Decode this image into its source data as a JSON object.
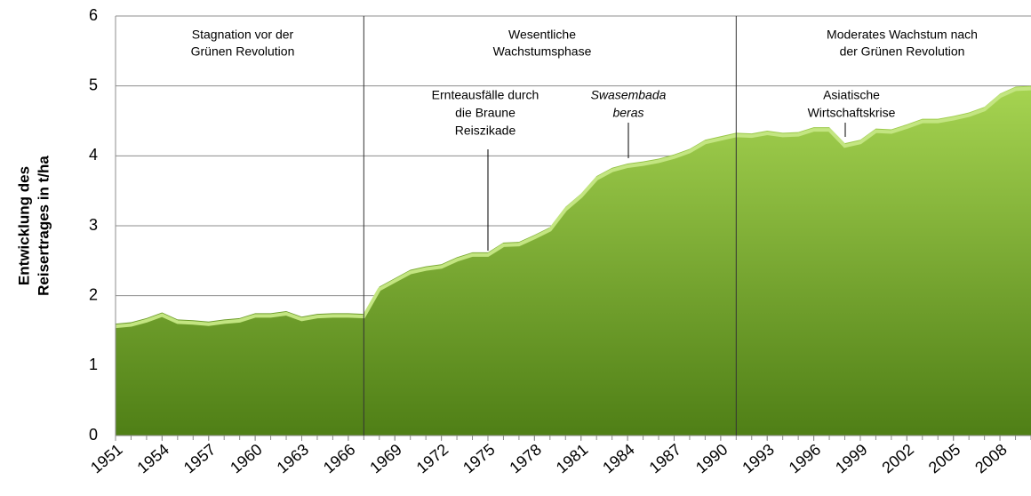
{
  "chart_data": {
    "type": "area",
    "y_label": [
      "Entwicklung des",
      "Reisertrages in t/ha"
    ],
    "x": [
      1951,
      1952,
      1953,
      1954,
      1955,
      1956,
      1957,
      1958,
      1959,
      1960,
      1961,
      1962,
      1963,
      1964,
      1965,
      1966,
      1967,
      1968,
      1969,
      1970,
      1971,
      1972,
      1973,
      1974,
      1975,
      1976,
      1977,
      1978,
      1979,
      1980,
      1981,
      1982,
      1983,
      1984,
      1985,
      1986,
      1987,
      1988,
      1989,
      1990,
      1991,
      1992,
      1993,
      1994,
      1995,
      1996,
      1997,
      1998,
      1999,
      2000,
      2001,
      2002,
      2003,
      2004,
      2005,
      2006,
      2007,
      2008,
      2009,
      2010
    ],
    "values": [
      1.6,
      1.62,
      1.68,
      1.76,
      1.66,
      1.65,
      1.63,
      1.66,
      1.68,
      1.75,
      1.75,
      1.78,
      1.7,
      1.74,
      1.75,
      1.75,
      1.74,
      2.13,
      2.25,
      2.37,
      2.42,
      2.45,
      2.55,
      2.62,
      2.62,
      2.76,
      2.77,
      2.87,
      2.98,
      3.27,
      3.46,
      3.71,
      3.83,
      3.89,
      3.92,
      3.96,
      4.02,
      4.1,
      4.23,
      4.28,
      4.33,
      4.32,
      4.36,
      4.33,
      4.34,
      4.41,
      4.41,
      4.18,
      4.23,
      4.39,
      4.38,
      4.45,
      4.53,
      4.53,
      4.57,
      4.62,
      4.7,
      4.89,
      4.99,
      5.0
    ],
    "color": "#8fc23c",
    "xlim": [
      1951,
      2010
    ],
    "xticks": [
      1951,
      1954,
      1957,
      1960,
      1963,
      1966,
      1969,
      1972,
      1975,
      1978,
      1981,
      1984,
      1987,
      1990,
      1993,
      1996,
      1999,
      2002,
      2005,
      2008
    ],
    "ylim": [
      0,
      6
    ],
    "yticks": [
      0,
      1,
      2,
      3,
      4,
      5,
      6
    ],
    "grid": true,
    "dividers": [
      1967,
      1991
    ],
    "phases": [
      [
        "Stagnation vor der",
        "Grünen Revolution"
      ],
      [
        "Wesentliche",
        "Wachstumsphase"
      ],
      [
        "Moderates Wachstum nach",
        "der Grünen Revolution"
      ]
    ],
    "annotations": [
      [
        "Ernteausfälle durch",
        "die Braune",
        "Reiszikade"
      ],
      [
        "Swasembada",
        "beras"
      ],
      [
        "Asiatische",
        "Wirtschaftskrise"
      ]
    ]
  }
}
